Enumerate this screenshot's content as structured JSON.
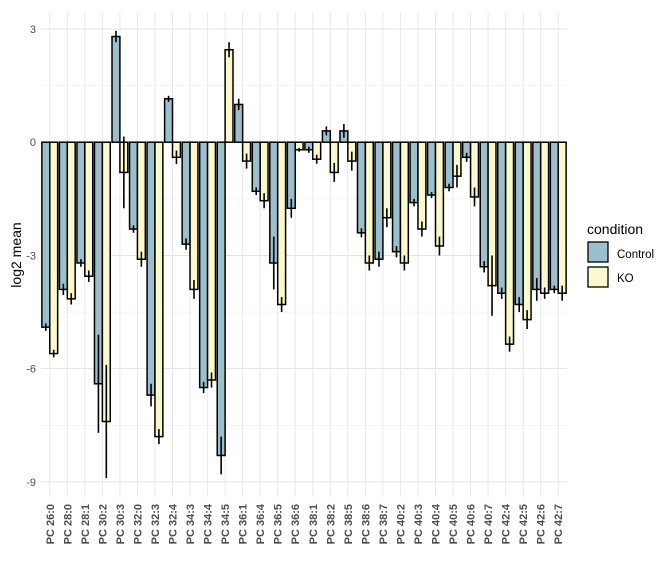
{
  "chart_data": {
    "type": "bar",
    "title": "",
    "xlabel": "",
    "ylabel": "log2 mean",
    "ylim": [
      -9.4,
      3.45
    ],
    "yticks": [
      3,
      0,
      -3,
      -6,
      -9
    ],
    "ytick_labels": [
      "3",
      "0",
      "-3",
      "-6",
      "-9"
    ],
    "grid": true,
    "legend": {
      "title": "condition",
      "position": "right"
    },
    "categories": [
      "PC 26:0",
      "PC 28:0",
      "PC 28:1",
      "PC 30:2",
      "PC 30:3",
      "PC 32:0",
      "PC 32:3",
      "PC 32:4",
      "PC 34:3",
      "PC 34:4",
      "PC 34:5",
      "PC 36:1",
      "PC 36:4",
      "PC 36:5",
      "PC 36:6",
      "PC 38:1",
      "PC 38:2",
      "PC 38:5",
      "PC 38:6",
      "PC 38:7",
      "PC 40:2",
      "PC 40:3",
      "PC 40:4",
      "PC 40:5",
      "PC 40:6",
      "PC 40:7",
      "PC 42:4",
      "PC 42:5",
      "PC 42:6",
      "PC 42:7"
    ],
    "series": [
      {
        "name": "Control",
        "color": "#9cbfce",
        "values": [
          -4.9,
          -3.9,
          -3.2,
          -6.4,
          2.8,
          -2.3,
          -6.7,
          1.15,
          -2.7,
          -6.5,
          -8.3,
          1.0,
          -1.3,
          -3.2,
          -1.75,
          -0.2,
          0.3,
          0.3,
          -2.4,
          -3.1,
          -2.9,
          -1.6,
          -1.4,
          -1.2,
          -0.4,
          -3.3,
          -4.0,
          -4.3,
          -3.9,
          -3.9
        ],
        "errors": [
          0.1,
          0.15,
          0.1,
          1.3,
          0.15,
          0.1,
          0.3,
          0.08,
          0.15,
          0.15,
          0.5,
          0.15,
          0.1,
          0.7,
          0.25,
          0.08,
          0.12,
          0.18,
          0.12,
          0.2,
          0.15,
          0.1,
          0.08,
          0.1,
          0.12,
          0.15,
          0.15,
          0.2,
          0.3,
          0.1
        ]
      },
      {
        "name": "KO",
        "color": "#fbf8cc",
        "values": [
          -5.6,
          -4.15,
          -3.55,
          -7.4,
          -0.8,
          -3.1,
          -7.8,
          -0.4,
          -3.9,
          -6.3,
          2.45,
          -0.5,
          -1.55,
          -4.3,
          -0.2,
          -0.45,
          -0.8,
          -0.5,
          -3.2,
          -2.0,
          -3.2,
          -2.3,
          -2.75,
          -0.9,
          -1.45,
          -3.8,
          -5.35,
          -4.7,
          -4.0,
          -4.0
        ],
        "errors": [
          0.1,
          0.15,
          0.15,
          1.5,
          0.95,
          0.2,
          0.2,
          0.18,
          0.25,
          0.2,
          0.2,
          0.2,
          0.2,
          0.2,
          0.05,
          0.12,
          0.25,
          0.25,
          0.2,
          0.25,
          0.2,
          0.2,
          0.25,
          0.3,
          0.25,
          0.8,
          0.2,
          0.25,
          0.15,
          0.2
        ]
      }
    ]
  }
}
